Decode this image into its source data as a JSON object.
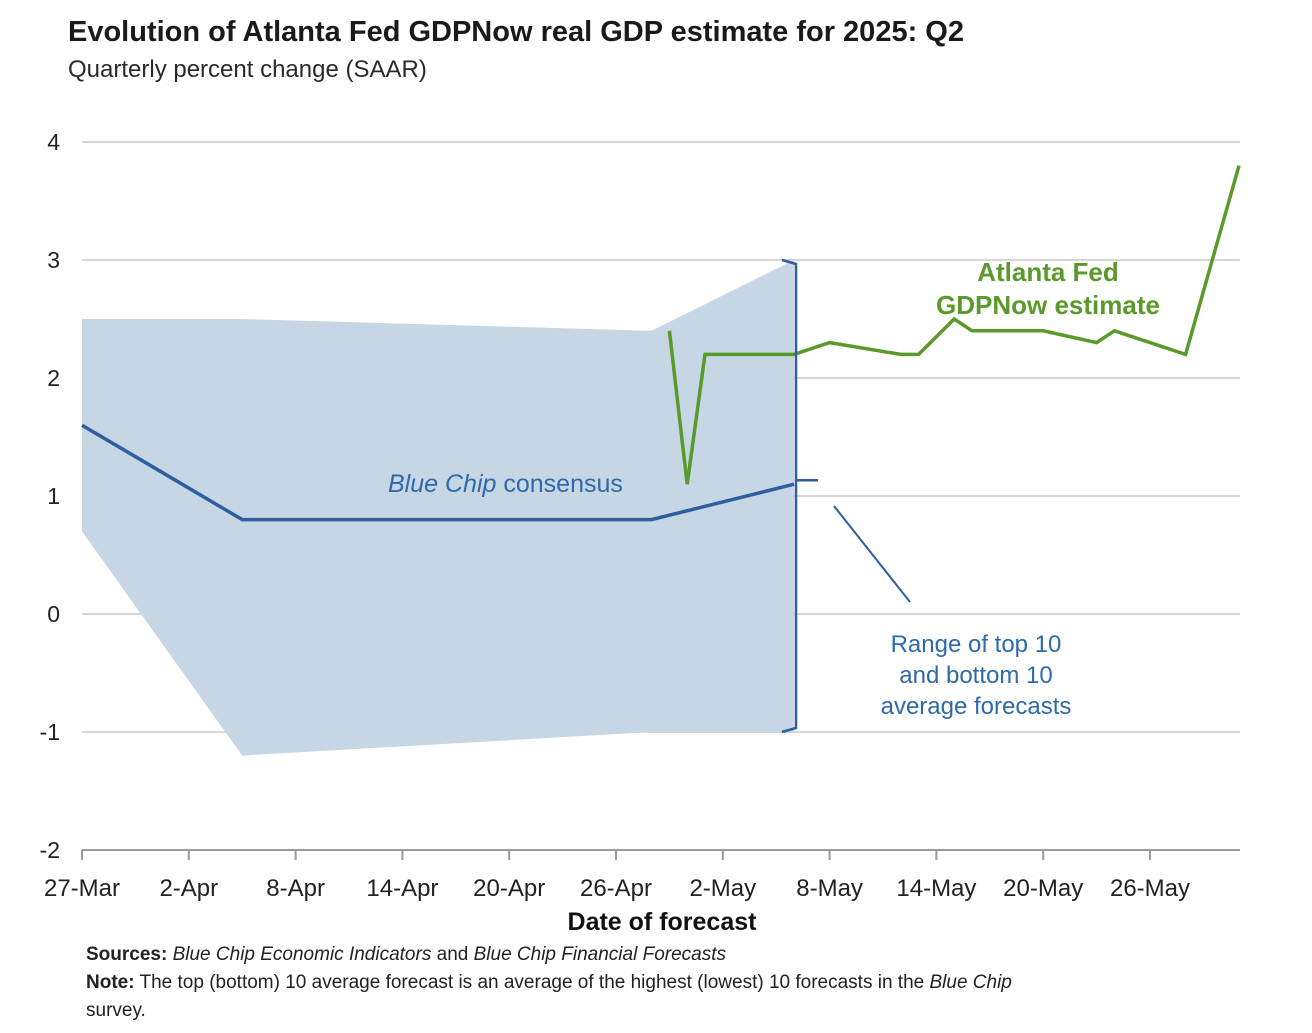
{
  "header": {
    "title": "Evolution of Atlanta Fed GDPNow real GDP estimate for 2025: Q2",
    "subtitle": "Quarterly percent change (SAAR)"
  },
  "footer": {
    "sources_label": "Sources:",
    "sources_text_1": "Blue Chip Economic Indicators",
    "sources_and": " and ",
    "sources_text_2": "Blue Chip Financial Forecasts",
    "note_label": "Note:",
    "note_text_1": " The top (bottom) 10 average forecast is an average of the highest (lowest) 10 forecasts in the ",
    "note_text_italic": "Blue Chip",
    "note_text_2": "survey."
  },
  "colors": {
    "consensus": "#2e5e9e",
    "range_fill": "#c6d6e5",
    "gdpnow": "#5a9a2a",
    "grid": "#c8c8c8",
    "annotation": "#2e6aab"
  },
  "chart_data": {
    "type": "line",
    "xlabel": "Date of forecast",
    "ylabel": "",
    "ylim": [
      -2,
      4
    ],
    "yticks": [
      -2,
      -1,
      0,
      1,
      2,
      3,
      4
    ],
    "grid": true,
    "x_ticks": [
      "27-Mar",
      "2-Apr",
      "8-Apr",
      "14-Apr",
      "20-Apr",
      "26-Apr",
      "2-May",
      "8-May",
      "14-May",
      "20-May",
      "26-May"
    ],
    "series": [
      {
        "name": "Blue Chip consensus",
        "kind": "line",
        "points": [
          [
            "27-Mar",
            1.6
          ],
          [
            "5-Apr",
            0.8
          ],
          [
            "28-Apr",
            0.8
          ],
          [
            "6-May",
            1.1
          ]
        ]
      },
      {
        "name": "Atlanta Fed GDPNow estimate",
        "kind": "line",
        "points": [
          [
            "29-Apr",
            2.4
          ],
          [
            "30-Apr",
            1.1
          ],
          [
            "1-May",
            2.2
          ],
          [
            "2-May",
            2.2
          ],
          [
            "6-May",
            2.2
          ],
          [
            "8-May",
            2.3
          ],
          [
            "12-May",
            2.2
          ],
          [
            "13-May",
            2.2
          ],
          [
            "15-May",
            2.5
          ],
          [
            "16-May",
            2.4
          ],
          [
            "20-May",
            2.4
          ],
          [
            "23-May",
            2.3
          ],
          [
            "24-May",
            2.4
          ],
          [
            "28-May",
            2.2
          ],
          [
            "31-May",
            3.8
          ]
        ]
      },
      {
        "name": "Range of top 10 and bottom 10 average forecasts",
        "kind": "band",
        "upper": [
          [
            "27-Mar",
            2.5
          ],
          [
            "5-Apr",
            2.5
          ],
          [
            "28-Apr",
            2.4
          ],
          [
            "6-May",
            3.0
          ]
        ],
        "lower": [
          [
            "27-Mar",
            0.7
          ],
          [
            "5-Apr",
            -1.2
          ],
          [
            "28-Apr",
            -1.0
          ],
          [
            "6-May",
            -1.0
          ]
        ]
      }
    ],
    "annotations": {
      "consensus_label_1": "Blue Chip",
      "consensus_label_2": " consensus",
      "gdpnow_label": [
        "Atlanta Fed",
        "GDPNow estimate"
      ],
      "range_label": [
        "Range of top 10",
        "and bottom 10",
        "average forecasts"
      ]
    }
  }
}
